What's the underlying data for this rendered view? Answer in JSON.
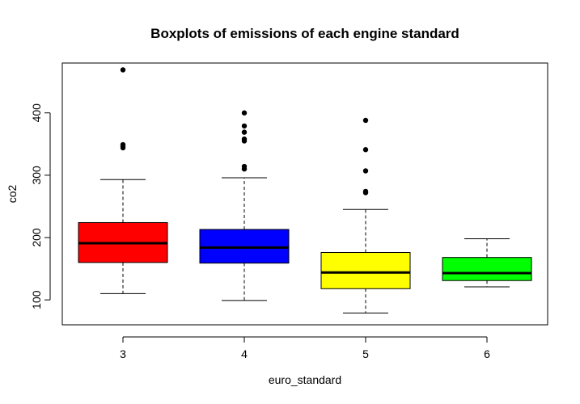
{
  "chart_data": {
    "type": "box",
    "title": "Boxplots of emissions of each engine standard",
    "xlabel": "euro_standard",
    "ylabel": "co2",
    "ylim": [
      60,
      480
    ],
    "yticks": [
      100,
      200,
      300,
      400
    ],
    "grid": false,
    "categories": [
      "3",
      "4",
      "5",
      "6"
    ],
    "boxes": [
      {
        "category": "3",
        "color": "#ff0000",
        "whisker_low": 110,
        "q1": 160,
        "median": 191,
        "q3": 224,
        "whisker_high": 293,
        "outliers": [
          344,
          346,
          349,
          469
        ]
      },
      {
        "category": "4",
        "color": "#0000ff",
        "whisker_low": 99,
        "q1": 159,
        "median": 184,
        "q3": 213,
        "whisker_high": 296,
        "outliers": [
          310,
          314,
          355,
          358,
          369,
          379,
          400
        ]
      },
      {
        "category": "5",
        "color": "#ffff00",
        "whisker_low": 79,
        "q1": 118,
        "median": 144,
        "q3": 176,
        "whisker_high": 245,
        "outliers": [
          272,
          274,
          307,
          341,
          388
        ]
      },
      {
        "category": "6",
        "color": "#00ff00",
        "whisker_low": 121,
        "q1": 131,
        "median": 143,
        "q3": 168,
        "whisker_high": 198,
        "outliers": []
      }
    ]
  }
}
